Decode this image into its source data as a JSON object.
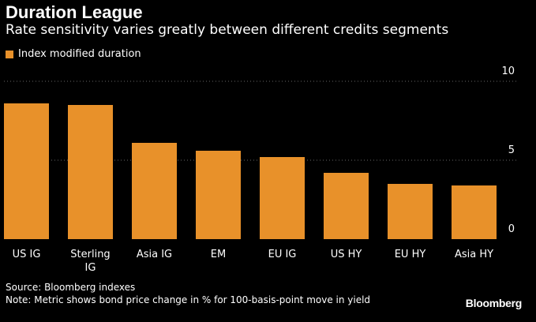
{
  "header": {
    "title": "Duration League",
    "subtitle": "Rate sensitivity varies greatly between different credits segments"
  },
  "footer": {
    "source": "Source: Bloomberg indexes",
    "note": "Note: Metric shows bond price change in % for 100-basis-point move in yield",
    "logo": "Bloomberg"
  },
  "colors": {
    "bar": "#E8912A",
    "grid": "#666666",
    "text": "#ffffff",
    "background": "#000000"
  },
  "chart_data": {
    "type": "bar",
    "title": "Duration League",
    "subtitle": "Rate sensitivity varies greatly between different credits segments",
    "categories": [
      "US IG",
      "Sterling IG",
      "Asia IG",
      "EM",
      "EU IG",
      "US HY",
      "EU HY",
      "Asia HY"
    ],
    "category_lines": [
      [
        "US IG"
      ],
      [
        "Sterling",
        "IG"
      ],
      [
        "Asia IG"
      ],
      [
        "EM"
      ],
      [
        "EU IG"
      ],
      [
        "US HY"
      ],
      [
        "EU HY"
      ],
      [
        "Asia HY"
      ]
    ],
    "series": [
      {
        "name": "Index modified duration",
        "values": [
          8.6,
          8.5,
          6.1,
          5.6,
          5.2,
          4.2,
          3.5,
          3.4
        ]
      }
    ],
    "ylim": [
      0,
      10
    ],
    "yticks": [
      0,
      5,
      10
    ],
    "grid": true,
    "legend": "top-left",
    "xlabel": "",
    "ylabel": ""
  }
}
